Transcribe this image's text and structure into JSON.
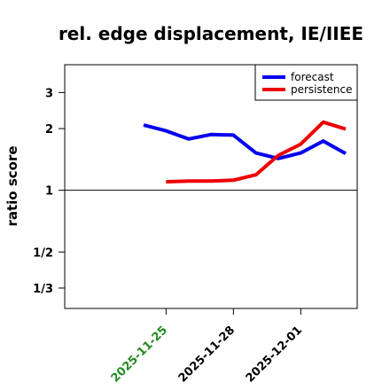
{
  "chart_data": {
    "type": "line",
    "title": "rel. edge displacement, IE/IIEE",
    "ylabel": "ratio score",
    "xlabel": "",
    "y_scale": "log",
    "y_ticks": [
      {
        "value": 0.3333,
        "label": "1/3"
      },
      {
        "value": 0.5,
        "label": "1/2"
      },
      {
        "value": 1,
        "label": "1"
      },
      {
        "value": 2,
        "label": "2"
      },
      {
        "value": 3,
        "label": "3"
      }
    ],
    "ylim": [
      0.265,
      4.1
    ],
    "x_ticks": [
      {
        "value": "2025-11-25",
        "label": "2025-11-25",
        "color": "#228b22"
      },
      {
        "value": "2025-11-28",
        "label": "2025-11-28",
        "color": "#000000"
      },
      {
        "value": "2025-12-01",
        "label": "2025-12-01",
        "color": "#000000"
      }
    ],
    "xlim": [
      "2025-11-21",
      "2025-12-03"
    ],
    "reference_line": 1,
    "legend_position": "top-right",
    "series": [
      {
        "name": "forecast",
        "color": "#0000ee",
        "x": [
          "2025-11-24",
          "2025-11-25",
          "2025-11-26",
          "2025-11-27",
          "2025-11-28",
          "2025-11-29",
          "2025-11-30",
          "2025-12-01",
          "2025-12-02",
          "2025-12-03"
        ],
        "y": [
          2.08,
          1.95,
          1.78,
          1.87,
          1.86,
          1.52,
          1.43,
          1.52,
          1.74,
          1.51
        ]
      },
      {
        "name": "persistence",
        "color": "#ee0000",
        "x": [
          "2025-11-25",
          "2025-11-26",
          "2025-11-27",
          "2025-11-28",
          "2025-11-29",
          "2025-11-30",
          "2025-12-01",
          "2025-12-02",
          "2025-12-03"
        ],
        "y": [
          1.1,
          1.11,
          1.11,
          1.12,
          1.19,
          1.48,
          1.68,
          2.15,
          1.99
        ]
      }
    ]
  }
}
